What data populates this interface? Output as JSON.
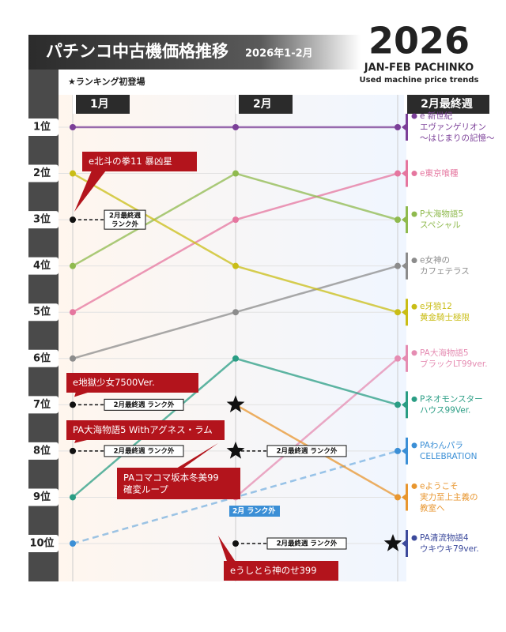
{
  "chart_data": {
    "type": "bump",
    "title": "パチンコ中古機価格推移",
    "subtitle": "2026年1-2月",
    "brand": {
      "year": "2026",
      "line1": "JAN-FEB PACHINKO",
      "line2": "Used machine price trends"
    },
    "star_note": "★ランキング初登場",
    "categories": [
      "1月",
      "2月",
      "2月最終週"
    ],
    "ylim": [
      1,
      10
    ],
    "yticks": [
      {
        "value": 1,
        "label": "1位"
      },
      {
        "value": 2,
        "label": "2位"
      },
      {
        "value": 3,
        "label": "3位"
      },
      {
        "value": 4,
        "label": "4位"
      },
      {
        "value": 5,
        "label": "5位"
      },
      {
        "value": 6,
        "label": "6位"
      },
      {
        "value": 7,
        "label": "7位"
      },
      {
        "value": 8,
        "label": "8位"
      },
      {
        "value": 9,
        "label": "9位"
      },
      {
        "value": 10,
        "label": "10位"
      }
    ],
    "series": [
      {
        "name": "e 新世紀\nエヴァンゲリオン\n〜はじまりの記憶〜",
        "color": "#7b3f98",
        "values": [
          1,
          1,
          1
        ]
      },
      {
        "name": "e東京喰種",
        "color": "#e5769f",
        "values": [
          5,
          3,
          2
        ]
      },
      {
        "name": "P大海物語5\nスペシャル",
        "color": "#8fba4e",
        "values": [
          4,
          2,
          3
        ]
      },
      {
        "name": "e女神の\nカフェテラス",
        "color": "#8c8c8c",
        "values": [
          6,
          5,
          4
        ]
      },
      {
        "name": "e牙狼12\n黄金騎士極限",
        "color": "#c9bd16",
        "values": [
          2,
          4,
          5
        ]
      },
      {
        "name": "PA大海物語5\nブラックLT99ver.",
        "color": "#e58cb2",
        "values": [
          null,
          9,
          6
        ]
      },
      {
        "name": "Pネオモンスター\nハウス99Ver.",
        "color": "#2a9d84",
        "values": [
          9,
          6,
          7
        ]
      },
      {
        "name": "PAわんパラ\nCELEBRATION",
        "color": "#3b8fd6",
        "values": [
          10,
          null,
          8
        ],
        "gap_note": "2月 ランク外"
      },
      {
        "name": "eようこそ\n実力至上主義の\n教室へ",
        "color": "#e8962f",
        "values": [
          null,
          7,
          9
        ],
        "debut": 1
      },
      {
        "name": "PA清流物語4\nウキウキ79ver.",
        "color": "#3c4a9c",
        "values": [
          null,
          null,
          10
        ],
        "debut": 2
      }
    ],
    "dropouts": [
      {
        "name": "e北斗の拳11 暴凶星",
        "x": 0,
        "rank": 3,
        "note": "2月最終週\nランク外"
      },
      {
        "name": "e地獄少女7500Ver.",
        "x": 0,
        "rank": 7,
        "note": "2月最終週 ランク外"
      },
      {
        "name": "PA大海物語5 Withアグネス・ラム",
        "x": 0,
        "rank": 8,
        "note": "2月最終週 ランク外"
      },
      {
        "name": "PAコマコマ坂本冬美99\n確変ループ",
        "x": 1,
        "rank": 8,
        "note": "2月最終週 ランク外",
        "debut": true
      },
      {
        "name": "eうしとら神のせ399",
        "x": 1,
        "rank": 10,
        "note": "2月最終週 ランク外"
      }
    ]
  }
}
